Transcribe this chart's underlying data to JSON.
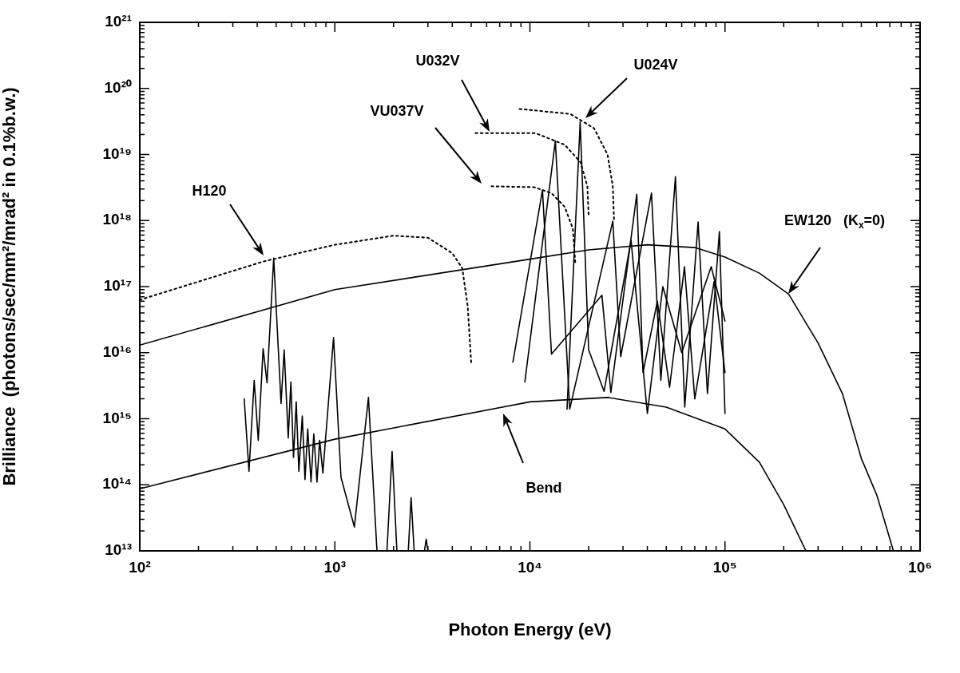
{
  "chart_data": {
    "type": "line",
    "xlabel": "Photon Energy (eV)",
    "ylabel": "Brilliance  (photons/sec/mm²/mrad² in 0.1%b.w.)",
    "log": "xy",
    "grid": false,
    "legend": false,
    "marker": "none",
    "xlim": [
      100,
      1000000
    ],
    "ylim": [
      10000000000000.0,
      1e+21
    ],
    "xticks": [
      {
        "value": 100,
        "label": "10²"
      },
      {
        "value": 200,
        "label": null
      },
      {
        "value": 300,
        "label": null
      },
      {
        "value": 400,
        "label": null
      },
      {
        "value": 500,
        "label": null
      },
      {
        "value": 600,
        "label": null
      },
      {
        "value": 700,
        "label": null
      },
      {
        "value": 800,
        "label": null
      },
      {
        "value": 900,
        "label": null
      },
      {
        "value": 1000,
        "label": "10³"
      },
      {
        "value": 2000,
        "label": null
      },
      {
        "value": 3000,
        "label": null
      },
      {
        "value": 4000,
        "label": null
      },
      {
        "value": 5000,
        "label": null
      },
      {
        "value": 6000,
        "label": null
      },
      {
        "value": 7000,
        "label": null
      },
      {
        "value": 8000,
        "label": null
      },
      {
        "value": 9000,
        "label": null
      },
      {
        "value": 10000,
        "label": "10⁴"
      },
      {
        "value": 20000,
        "label": null
      },
      {
        "value": 30000,
        "label": null
      },
      {
        "value": 40000,
        "label": null
      },
      {
        "value": 50000,
        "label": null
      },
      {
        "value": 60000,
        "label": null
      },
      {
        "value": 70000,
        "label": null
      },
      {
        "value": 80000,
        "label": null
      },
      {
        "value": 90000,
        "label": null
      },
      {
        "value": 100000,
        "label": "10⁵"
      },
      {
        "value": 200000,
        "label": null
      },
      {
        "value": 300000,
        "label": null
      },
      {
        "value": 400000,
        "label": null
      },
      {
        "value": 500000,
        "label": null
      },
      {
        "value": 600000,
        "label": null
      },
      {
        "value": 700000,
        "label": null
      },
      {
        "value": 800000,
        "label": null
      },
      {
        "value": 900000,
        "label": null
      },
      {
        "value": 1000000,
        "label": "10⁶"
      }
    ],
    "yticks": [
      {
        "value": 10000000000000.0,
        "label": "10¹³"
      },
      {
        "value": 20000000000000.0,
        "label": null
      },
      {
        "value": 30000000000000.0,
        "label": null
      },
      {
        "value": 40000000000000.0,
        "label": null
      },
      {
        "value": 50000000000000.0,
        "label": null
      },
      {
        "value": 60000000000000.0,
        "label": null
      },
      {
        "value": 70000000000000.0,
        "label": null
      },
      {
        "value": 80000000000000.0,
        "label": null
      },
      {
        "value": 90000000000000.0,
        "label": null
      },
      {
        "value": 100000000000000.0,
        "label": "10¹⁴"
      },
      {
        "value": 200000000000000.0,
        "label": null
      },
      {
        "value": 300000000000000.0,
        "label": null
      },
      {
        "value": 400000000000000.0,
        "label": null
      },
      {
        "value": 500000000000000.0,
        "label": null
      },
      {
        "value": 600000000000000.0,
        "label": null
      },
      {
        "value": 700000000000000.0,
        "label": null
      },
      {
        "value": 800000000000000.0,
        "label": null
      },
      {
        "value": 900000000000000.0,
        "label": null
      },
      {
        "value": 1000000000000000.0,
        "label": "10¹⁵"
      },
      {
        "value": 2000000000000000.0,
        "label": null
      },
      {
        "value": 3000000000000000.0,
        "label": null
      },
      {
        "value": 4000000000000000.0,
        "label": null
      },
      {
        "value": 5000000000000000.0,
        "label": null
      },
      {
        "value": 6000000000000000.0,
        "label": null
      },
      {
        "value": 7000000000000000.0,
        "label": null
      },
      {
        "value": 8000000000000000.0,
        "label": null
      },
      {
        "value": 9000000000000000.0,
        "label": null
      },
      {
        "value": 1e+16,
        "label": "10¹⁶"
      },
      {
        "value": 2e+16,
        "label": null
      },
      {
        "value": 3e+16,
        "label": null
      },
      {
        "value": 4e+16,
        "label": null
      },
      {
        "value": 5e+16,
        "label": null
      },
      {
        "value": 6e+16,
        "label": null
      },
      {
        "value": 7e+16,
        "label": null
      },
      {
        "value": 8e+16,
        "label": null
      },
      {
        "value": 9e+16,
        "label": null
      },
      {
        "value": 1e+17,
        "label": "10¹⁷"
      },
      {
        "value": 2e+17,
        "label": null
      },
      {
        "value": 3e+17,
        "label": null
      },
      {
        "value": 4e+17,
        "label": null
      },
      {
        "value": 5e+17,
        "label": null
      },
      {
        "value": 6e+17,
        "label": null
      },
      {
        "value": 7e+17,
        "label": null
      },
      {
        "value": 8e+17,
        "label": null
      },
      {
        "value": 9e+17,
        "label": null
      },
      {
        "value": 1e+18,
        "label": "10¹⁸"
      },
      {
        "value": 2e+18,
        "label": null
      },
      {
        "value": 3e+18,
        "label": null
      },
      {
        "value": 4e+18,
        "label": null
      },
      {
        "value": 5e+18,
        "label": null
      },
      {
        "value": 6e+18,
        "label": null
      },
      {
        "value": 7e+18,
        "label": null
      },
      {
        "value": 8e+18,
        "label": null
      },
      {
        "value": 9e+18,
        "label": null
      },
      {
        "value": 1e+19,
        "label": "10¹⁹"
      },
      {
        "value": 2e+19,
        "label": null
      },
      {
        "value": 3e+19,
        "label": null
      },
      {
        "value": 4e+19,
        "label": null
      },
      {
        "value": 5e+19,
        "label": null
      },
      {
        "value": 6e+19,
        "label": null
      },
      {
        "value": 7e+19,
        "label": null
      },
      {
        "value": 8e+19,
        "label": null
      },
      {
        "value": 9e+19,
        "label": null
      },
      {
        "value": 1e+20,
        "label": "10²⁰"
      },
      {
        "value": 2e+20,
        "label": null
      },
      {
        "value": 3e+20,
        "label": null
      },
      {
        "value": 4e+20,
        "label": null
      },
      {
        "value": 5e+20,
        "label": null
      },
      {
        "value": 6e+20,
        "label": null
      },
      {
        "value": 7e+20,
        "label": null
      },
      {
        "value": 8e+20,
        "label": null
      },
      {
        "value": 9e+20,
        "label": null
      },
      {
        "value": 1e+21,
        "label": "10²¹"
      }
    ],
    "series": [
      {
        "color": "#000000",
        "line_style": "solid",
        "x": [
          100,
          1000,
          10000,
          20000,
          40000,
          70000,
          100000,
          150000,
          212000,
          300000,
          400000,
          500000,
          600000,
          730000
        ],
        "values": [
          1.3e+16,
          9e+16,
          2.6e+17,
          3.6e+17,
          4.3e+17,
          3.9e+17,
          2.8e+17,
          1.6e+17,
          7.7e+16,
          1.4e+16,
          2400000000000000.0,
          250000000000000.0,
          70000000000000.0,
          10000000000000.0
        ]
      },
      {
        "color": "#000000",
        "line_style": "solid",
        "x": [
          100,
          1000,
          10000,
          25000,
          50000,
          100000,
          150000,
          200000,
          260000
        ],
        "values": [
          87000000000000.0,
          490000000000000.0,
          1800000000000000.0,
          2100000000000000.0,
          1500000000000000.0,
          700000000000000.0,
          220000000000000.0,
          50000000000000.0,
          10000000000000.0
        ]
      },
      {
        "color": "#000000",
        "line_style": "dotted",
        "x": [
          100,
          430,
          1000,
          2000,
          3000,
          4000,
          4500,
          4800,
          5000
        ],
        "values": [
          6.3e+16,
          2.4e+17,
          4.3e+17,
          5.9e+17,
          5.5e+17,
          3.2e+17,
          1.9e+17,
          5e+16,
          7000000000000000.0
        ]
      },
      {
        "color": "#000000",
        "line_style": "solid",
        "x": [
          343,
          363,
          386,
          405,
          429,
          449,
          486,
          530,
          550,
          577,
          595,
          614,
          634,
          654,
          681,
          703,
          726,
          755,
          780,
          810,
          836,
          868,
          985,
          1075,
          1259,
          1487,
          1644,
          1700,
          1850,
          1966,
          2080,
          2200,
          2380,
          2460,
          2550,
          2700,
          2880,
          2940,
          3000
        ],
        "values": [
          2000000000000000.0,
          160000000000000.0,
          3800000000000000.0,
          470000000000000.0,
          1.15e+16,
          3500000000000000.0,
          2.7e+17,
          1700000000000000.0,
          1.1e+16,
          510000000000000.0,
          3600000000000000.0,
          260000000000000.0,
          1800000000000000.0,
          160000000000000.0,
          1100000000000000.0,
          120000000000000.0,
          700000000000000.0,
          110000000000000.0,
          590000000000000.0,
          110000000000000.0,
          470000000000000.0,
          150000000000000.0,
          1.7e+16,
          130000000000000.0,
          23000000000000.0,
          2100000000000000.0,
          10000000000000.0,
          null,
          10000000000000.0,
          320000000000000.0,
          10000000000000.0,
          null,
          10000000000000.0,
          64000000000000.0,
          10000000000000.0,
          null,
          10000000000000.0,
          15000000000000.0,
          10000000000000.0
        ]
      },
      {
        "color": "#000000",
        "line_style": "dotted",
        "x": [
          6350,
          10500,
          12900,
          15100,
          16600,
          17100
        ],
        "values": [
          3.3e+18,
          3.2e+18,
          2.6e+18,
          1.6e+18,
          7.5e+17,
          2.2e+17
        ]
      },
      {
        "color": "#000000",
        "line_style": "dotted",
        "x": [
          5260,
          10700,
          15100,
          18200,
          19700,
          20000
        ],
        "values": [
          2.1e+19,
          2.1e+19,
          1.4e+19,
          7.6e+18,
          3.3e+18,
          1.2e+18
        ]
      },
      {
        "color": "#000000",
        "line_style": "dotted",
        "x": [
          8850,
          16100,
          21300,
          25000,
          26600,
          27000
        ],
        "values": [
          4.9e+19,
          4.1e+19,
          2.5e+19,
          1e+19,
          3.3e+18,
          9.8e+17
        ]
      },
      {
        "color": "#000000",
        "line_style": "solid",
        "x": [
          8180,
          11600,
          12900,
          23400,
          26000,
          35300,
          38000,
          45000,
          52000,
          62000,
          70000,
          88000,
          100000
        ],
        "values": [
          7200000000000000.0,
          2.9e+18,
          9500000000000000.0,
          7.4e+16,
          2500000000000000.0,
          2.5e+18,
          5000000000000000.0,
          6e+16,
          3000000000000000.0,
          2e+17,
          2000000000000000.0,
          1.2e+17,
          5000000000000000.0
        ]
      },
      {
        "color": "#000000",
        "line_style": "solid",
        "x": [
          9420,
          13500,
          16000,
          26600,
          29200,
          42000,
          46900,
          55700,
          62200,
          72800,
          81300,
          93600,
          100000
        ],
        "values": [
          3600000000000000.0,
          1.6e+19,
          1400000000000000.0,
          9.8e+17,
          8700000000000000.0,
          2.6e+18,
          3800000000000000.0,
          4.6e+18,
          1500000000000000.0,
          9.5e+17,
          2400000000000000.0,
          6.8e+17,
          1200000000000000.0
        ]
      },
      {
        "color": "#000000",
        "line_style": "solid",
        "x": [
          15500,
          18100,
          20000,
          24000,
          33000,
          40000,
          48000,
          60000,
          85000,
          100000
        ],
        "values": [
          1400000000000000.0,
          3.1e+19,
          1.1e+16,
          2600000000000000.0,
          5e+17,
          1200000000000000.0,
          1e+17,
          1e+16,
          2e+17,
          3e+16
        ]
      }
    ],
    "annotations": [
      "H120",
      "VU037V",
      "U032V",
      "U024V",
      "EW120   (K$_{x}$=0)",
      "Bend"
    ]
  }
}
